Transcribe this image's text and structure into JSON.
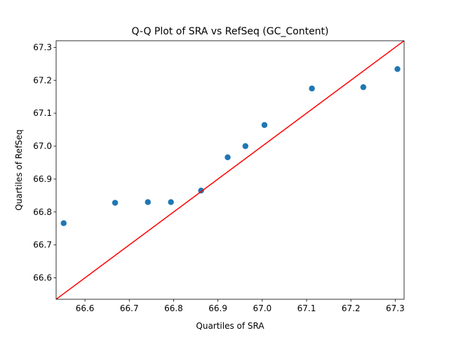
{
  "chart_data": {
    "type": "scatter",
    "title": "Q-Q Plot of SRA vs RefSeq (GC_Content)",
    "xlabel": "Quartiles of SRA",
    "ylabel": "Quartiles of RefSeq",
    "xlim": [
      66.535,
      67.32
    ],
    "ylim": [
      66.535,
      67.32
    ],
    "xticks": [
      66.6,
      66.7,
      66.8,
      66.9,
      67.0,
      67.1,
      67.2,
      67.3
    ],
    "yticks": [
      66.6,
      66.7,
      66.8,
      66.9,
      67.0,
      67.1,
      67.2,
      67.3
    ],
    "xtick_labels": [
      "66.6",
      "66.7",
      "66.8",
      "66.9",
      "67.0",
      "67.1",
      "67.2",
      "67.3"
    ],
    "ytick_labels": [
      "66.6",
      "66.7",
      "66.8",
      "66.9",
      "67.0",
      "67.1",
      "67.2",
      "67.3"
    ],
    "grid": false,
    "points": {
      "x": [
        66.552,
        66.668,
        66.742,
        66.794,
        66.862,
        66.922,
        66.962,
        67.005,
        67.112,
        67.228,
        67.305
      ],
      "y": [
        66.766,
        66.828,
        66.83,
        66.83,
        66.865,
        66.966,
        67.0,
        67.064,
        67.175,
        67.179,
        67.234
      ],
      "color": "#1f77b4"
    },
    "reference_line": {
      "x": [
        66.535,
        67.32
      ],
      "y": [
        66.535,
        67.32
      ],
      "color": "#ff0000"
    }
  }
}
